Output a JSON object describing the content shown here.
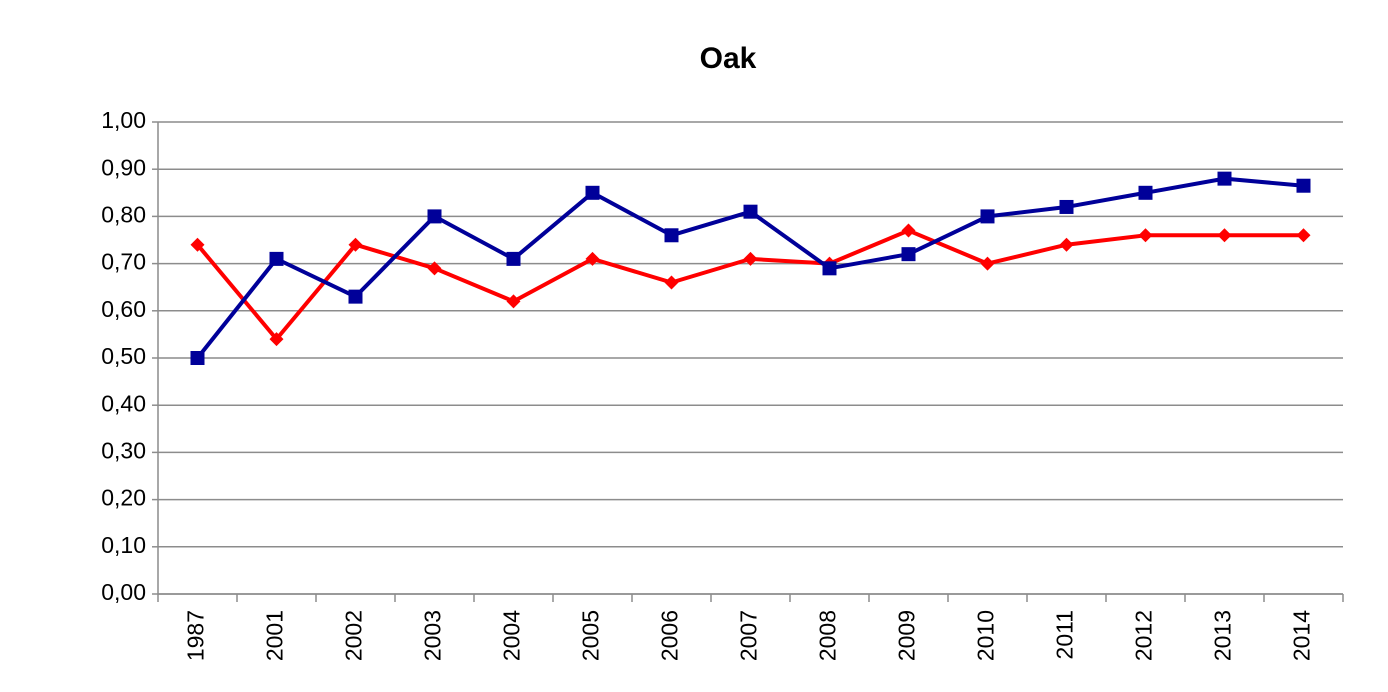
{
  "chart_data": {
    "type": "line",
    "title": "Oak",
    "categories": [
      "1987",
      "2001",
      "2002",
      "2003",
      "2004",
      "2005",
      "2006",
      "2007",
      "2008",
      "2009",
      "2010",
      "2011",
      "2012",
      "2013",
      "2014"
    ],
    "series": [
      {
        "color": "#ff0000",
        "marker": "diamond",
        "values": [
          0.74,
          0.54,
          0.74,
          0.69,
          0.62,
          0.71,
          0.66,
          0.71,
          0.7,
          0.77,
          0.7,
          0.74,
          0.76,
          0.76,
          0.76
        ]
      },
      {
        "color": "#000099",
        "marker": "square",
        "values": [
          0.5,
          0.71,
          0.63,
          0.8,
          0.71,
          0.85,
          0.76,
          0.81,
          0.69,
          0.72,
          0.8,
          0.82,
          0.85,
          0.88,
          0.865
        ]
      }
    ],
    "ylim": [
      0,
      1
    ],
    "yticks": [
      {
        "value": 0,
        "label": "0,00"
      },
      {
        "value": 0.1,
        "label": "0,10"
      },
      {
        "value": 0.2,
        "label": "0,20"
      },
      {
        "value": 0.3,
        "label": "0,30"
      },
      {
        "value": 0.4,
        "label": "0,40"
      },
      {
        "value": 0.5,
        "label": "0,50"
      },
      {
        "value": 0.6,
        "label": "0,60"
      },
      {
        "value": 0.7,
        "label": "0,70"
      },
      {
        "value": 0.8,
        "label": "0,80"
      },
      {
        "value": 0.9,
        "label": "0,90"
      },
      {
        "value": 1,
        "label": "1,00"
      }
    ],
    "grid": true
  }
}
